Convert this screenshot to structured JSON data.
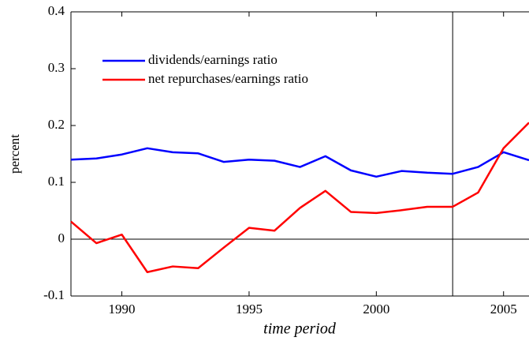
{
  "chart_data": {
    "type": "line",
    "x_label": "time period",
    "y_label": "percent",
    "x": [
      1988,
      1989,
      1990,
      1991,
      1992,
      1993,
      1994,
      1995,
      1996,
      1997,
      1998,
      1999,
      2000,
      2001,
      2002,
      2003,
      2004,
      2005,
      2006
    ],
    "series": [
      {
        "name": "dividends/earnings ratio",
        "color": "#0000ff",
        "values": [
          0.14,
          0.142,
          0.149,
          0.16,
          0.153,
          0.151,
          0.136,
          0.14,
          0.138,
          0.127,
          0.146,
          0.121,
          0.11,
          0.12,
          0.117,
          0.115,
          0.127,
          0.153,
          0.139
        ]
      },
      {
        "name": "net repurchases/earnings ratio",
        "color": "#ff0000",
        "values": [
          0.031,
          -0.007,
          0.008,
          -0.058,
          -0.048,
          -0.051,
          -0.015,
          0.02,
          0.015,
          0.055,
          0.085,
          0.048,
          0.046,
          0.051,
          0.057,
          0.057,
          0.082,
          0.16,
          0.205
        ]
      }
    ],
    "xlim": [
      1988,
      2006
    ],
    "ylim": [
      -0.1,
      0.4
    ],
    "xticks": [
      1990,
      1995,
      2000,
      2005
    ],
    "yticks": [
      -0.1,
      0,
      0.1,
      0.2,
      0.3,
      0.4
    ],
    "vline": 2003,
    "hline": 0
  }
}
